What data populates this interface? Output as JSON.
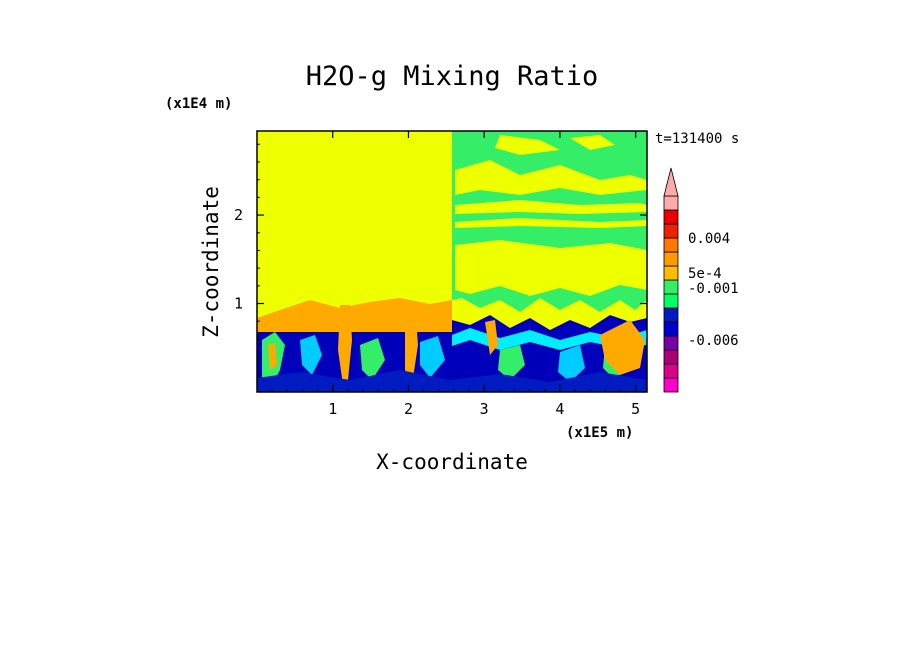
{
  "chart_data": {
    "type": "heatmap",
    "title": "H2O-g Mixing Ratio",
    "xlabel": "X-coordinate",
    "ylabel": "Z-coordinate",
    "x_scale_label": "(x1E5 m)",
    "y_scale_label": "(x1E4 m)",
    "time_label": "t=131400 s",
    "xlim": [
      0,
      5.15
    ],
    "ylim": [
      0,
      2.95
    ],
    "x_ticks": [
      "1",
      "2",
      "3",
      "4",
      "5"
    ],
    "y_ticks": [
      "1",
      "2"
    ],
    "x_tick_values": [
      1,
      2,
      3,
      4,
      5
    ],
    "y_tick_values": [
      1,
      2
    ],
    "colorbar": {
      "colors": [
        "#ff00cc",
        "#dd0088",
        "#aa0077",
        "#7700aa",
        "#0000cc",
        "#001bbf",
        "#00ff66",
        "#33ee66",
        "#ffbb00",
        "#ff9900",
        "#ff7700",
        "#ee2200",
        "#ee0000",
        "#ffaaaa"
      ],
      "tick_labels": [
        "0.004",
        "5e-4",
        "-0.001",
        "-0.006"
      ],
      "extend": "max"
    },
    "regions": {
      "upper_left": "#eeff00",
      "upper_right": "#33ee66",
      "lower_boundary_layer": "#0000bb",
      "cyan_layer": "#00eeff",
      "orange_plumes": "#ffaa00"
    }
  }
}
